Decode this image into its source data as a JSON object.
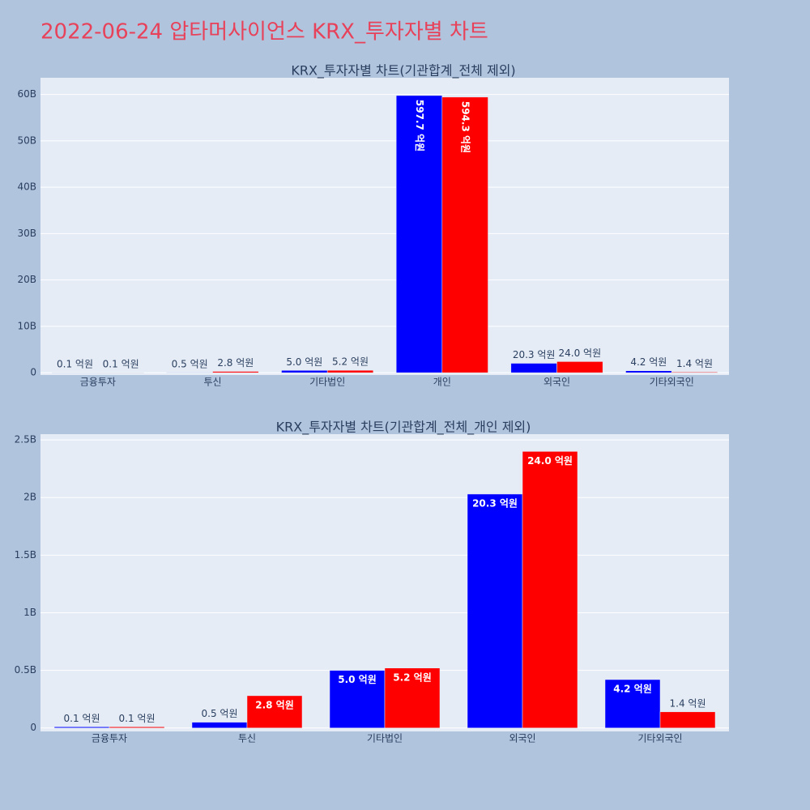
{
  "title": "2022-06-24 압타머사이언스 KRX_투자자별 차트",
  "chart_data": [
    {
      "type": "bar",
      "title": "KRX_투자자별 차트(기관합계_전체 제외)",
      "categories": [
        "금융투자",
        "투신",
        "기타법인",
        "개인",
        "외국인",
        "기타외국인"
      ],
      "series": [
        {
          "color": "#0000ff",
          "values": [
            0.01,
            0.05,
            0.5,
            59.77,
            2.03,
            0.42
          ],
          "value_labels": [
            "0.1 억원",
            "0.5 억원",
            "5.0 억원",
            "597.7 억원",
            "20.3 억원",
            "4.2 억원"
          ]
        },
        {
          "color": "#ff0000",
          "values": [
            0.01,
            0.28,
            0.52,
            59.43,
            2.4,
            0.14
          ],
          "value_labels": [
            "0.1 억원",
            "2.8 억원",
            "5.2 억원",
            "594.3 억원",
            "24.0 억원",
            "1.4 억원"
          ]
        }
      ],
      "ylim": [
        -0.5,
        63.6
      ],
      "yticks": [
        0,
        {
          "value": 10,
          "label": "10B"
        },
        {
          "value": 20,
          "label": "20B"
        },
        {
          "value": 30,
          "label": "30B"
        },
        {
          "value": 40,
          "label": "40B"
        },
        {
          "value": 50,
          "label": "50B"
        },
        {
          "value": 60,
          "label": "60B"
        }
      ],
      "grid": true
    },
    {
      "type": "bar",
      "title": "KRX_투자자별 차트(기관합계_전체_개인 제외)",
      "categories": [
        "금융투자",
        "투신",
        "기타법인",
        "외국인",
        "기타외국인"
      ],
      "series": [
        {
          "color": "#0000ff",
          "values": [
            0.01,
            0.05,
            0.5,
            2.03,
            0.42
          ],
          "value_labels": [
            "0.1 억원",
            "0.5 억원",
            "5.0 억원",
            "20.3 억원",
            "4.2 억원"
          ]
        },
        {
          "color": "#ff0000",
          "values": [
            0.01,
            0.28,
            0.52,
            2.4,
            0.14
          ],
          "value_labels": [
            "0.1 억원",
            "2.8 억원",
            "5.2 억원",
            "24.0 억원",
            "1.4 억원"
          ]
        }
      ],
      "ylim": [
        -0.03,
        2.55
      ],
      "yticks": [
        0,
        {
          "value": 0.5,
          "label": "0.5B"
        },
        {
          "value": 1,
          "label": "1B"
        },
        {
          "value": 1.5,
          "label": "1.5B"
        },
        {
          "value": 2,
          "label": "2B"
        },
        {
          "value": 2.5,
          "label": "2.5B"
        }
      ],
      "grid": true
    }
  ]
}
